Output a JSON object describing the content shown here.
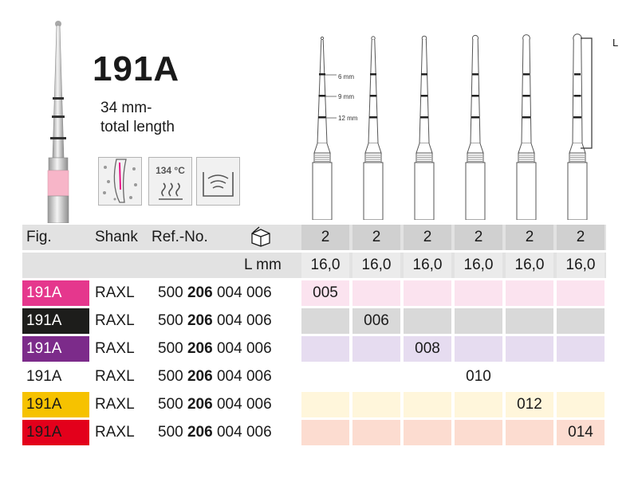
{
  "product": {
    "title": "191A",
    "length_line1": "34 mm-",
    "length_line2": "total length",
    "temperature": "134 °C"
  },
  "drawing": {
    "depth_marks": [
      "6 mm",
      "9 mm",
      "12 mm"
    ],
    "length_symbol": "L"
  },
  "table": {
    "headers": {
      "fig": "Fig.",
      "shank": "Shank",
      "ref": "Ref.-No.",
      "length": "L mm"
    },
    "pack_qty": [
      "2",
      "2",
      "2",
      "2",
      "2",
      "2"
    ],
    "lengths": [
      "16,0",
      "16,0",
      "16,0",
      "16,0",
      "16,0",
      "16,0"
    ],
    "rows": [
      {
        "fig": "191A",
        "shank": "RAXL",
        "ref_a": "500",
        "ref_b": "206",
        "ref_c": "004 006",
        "size": "005",
        "col": 0,
        "color": "#e5378d",
        "tint": "#fbe3ef",
        "fig_text": "#ffffff"
      },
      {
        "fig": "191A",
        "shank": "RAXL",
        "ref_a": "500",
        "ref_b": "206",
        "ref_c": "004 006",
        "size": "006",
        "col": 1,
        "color": "#1d1d1b",
        "tint": "#d9d9d9",
        "fig_text": "#ffffff"
      },
      {
        "fig": "191A",
        "shank": "RAXL",
        "ref_a": "500",
        "ref_b": "206",
        "ref_c": "004 006",
        "size": "008",
        "col": 2,
        "color": "#7c2b8a",
        "tint": "#e6dcf0",
        "fig_text": "#ffffff"
      },
      {
        "fig": "191A",
        "shank": "RAXL",
        "ref_a": "500",
        "ref_b": "206",
        "ref_c": "004 006",
        "size": "010",
        "col": 3,
        "color": "#ffffff",
        "tint": "#ffffff",
        "fig_text": "#1a1a1a"
      },
      {
        "fig": "191A",
        "shank": "RAXL",
        "ref_a": "500",
        "ref_b": "206",
        "ref_c": "004 006",
        "size": "012",
        "col": 4,
        "color": "#f6c200",
        "tint": "#fff6db",
        "fig_text": "#1a1a1a"
      },
      {
        "fig": "191A",
        "shank": "RAXL",
        "ref_a": "500",
        "ref_b": "206",
        "ref_c": "004 006",
        "size": "014",
        "col": 5,
        "color": "#e3001b",
        "tint": "#fcdcd0",
        "fig_text": "#1a1a1a"
      }
    ]
  }
}
